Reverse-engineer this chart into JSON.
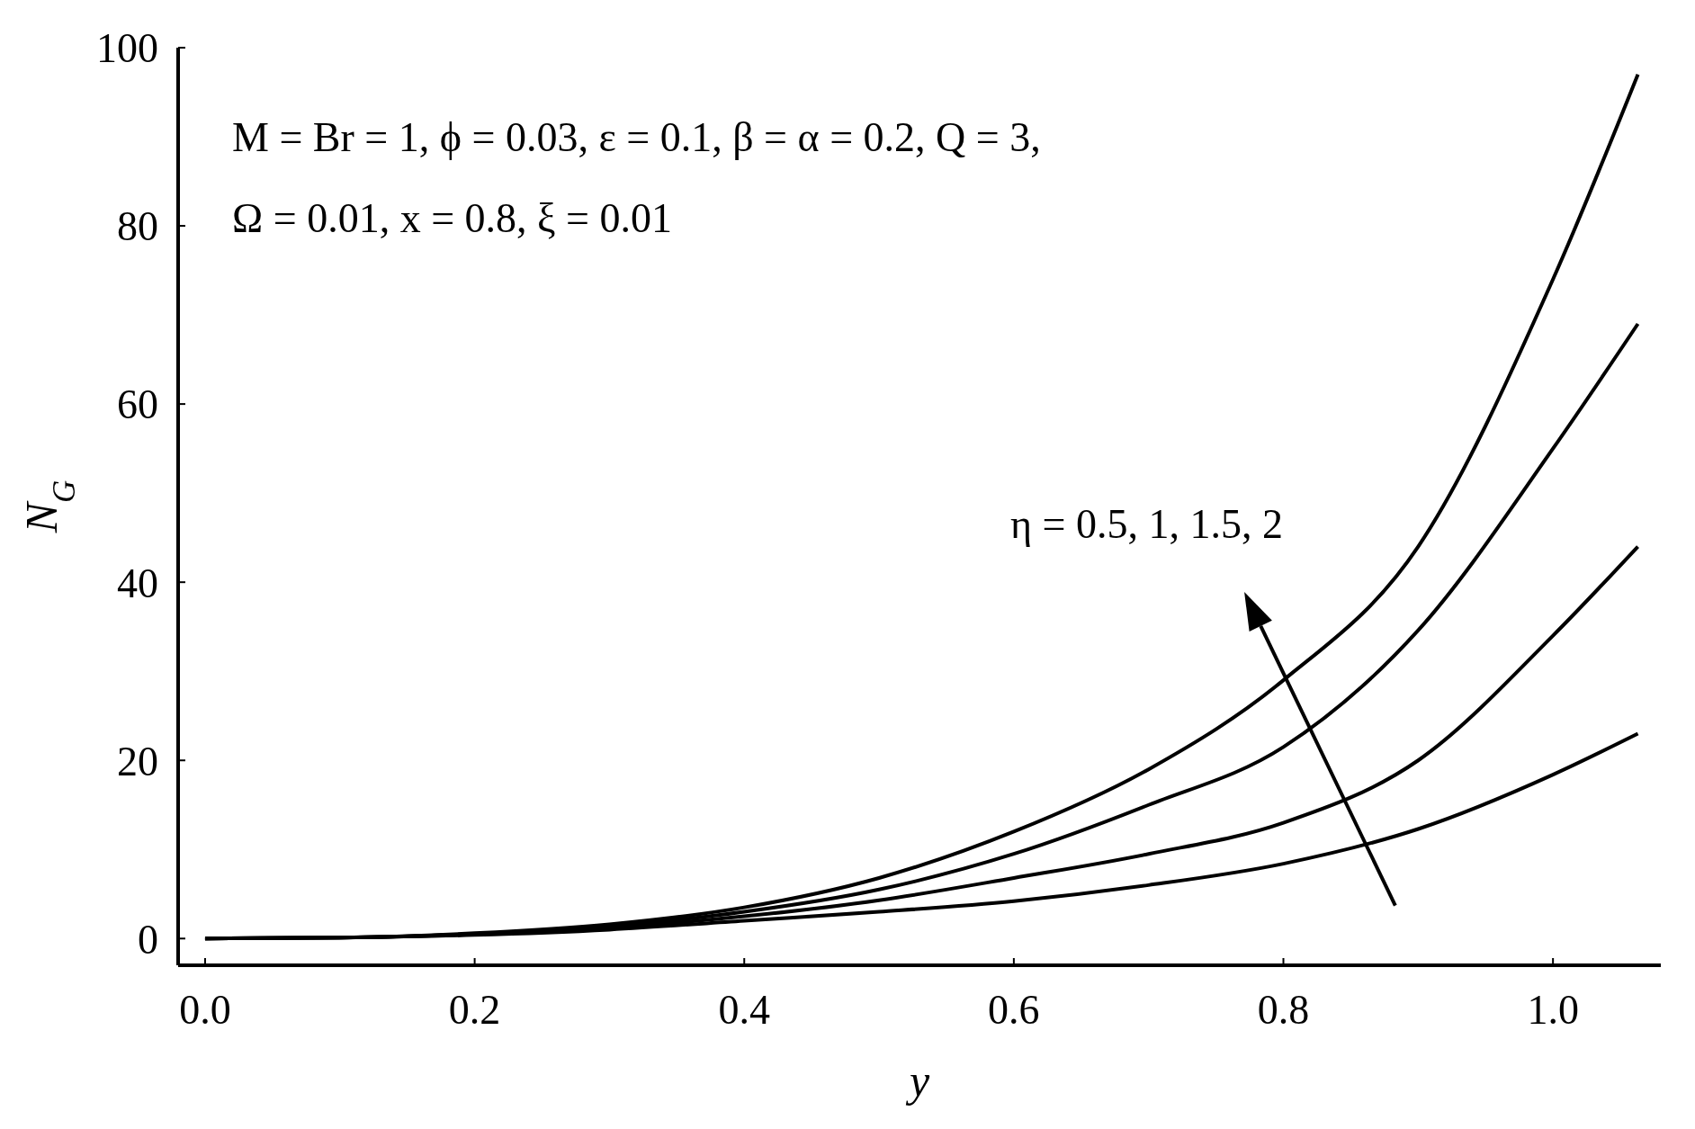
{
  "chart_data": {
    "type": "line",
    "xlabel": "y",
    "ylabel": "N$_{G}$",
    "x": [
      0,
      0.1,
      0.2,
      0.3,
      0.4,
      0.5,
      0.6,
      0.7,
      0.8,
      0.9,
      1.0,
      1.063
    ],
    "series": [
      {
        "color": "#000000",
        "values": [
          0,
          0.1,
          0.6,
          1.6,
          3.5,
          6.8,
          12,
          19,
          29,
          44,
          74,
          97
        ]
      },
      {
        "color": "#000000",
        "values": [
          0,
          0.1,
          0.5,
          1.4,
          3,
          5.5,
          9.5,
          15,
          21.5,
          34.6,
          55,
          69
        ]
      },
      {
        "color": "#000000",
        "values": [
          0,
          0.1,
          0.5,
          1.2,
          2.5,
          4.3,
          6.8,
          9.5,
          13,
          20,
          34,
          44
        ]
      },
      {
        "color": "#000000",
        "values": [
          0,
          0.1,
          0.4,
          1,
          2,
          3,
          4.2,
          6,
          8.4,
          12.3,
          18.4,
          23
        ]
      }
    ],
    "xlim": [
      -0.02,
      1.08
    ],
    "ylim": [
      -3,
      100
    ],
    "xticks": [
      {
        "value": 0,
        "label": "0.0"
      },
      0.2,
      0.4,
      0.6,
      0.8,
      {
        "value": 1,
        "label": "1.0"
      }
    ],
    "yticks": [
      0,
      20,
      40,
      60,
      80,
      100
    ],
    "grid": false,
    "legend": false,
    "marker": "none",
    "line_style": "solid",
    "annotations": [
      "M = Br  = 1, ϕ = 0.03, ε = 0.1, β = α = 0.2, Q = 3,",
      "Ω = 0.01, x = 0.8, ξ = 0.01",
      "η = 0.5, 1, 1.5, 2"
    ]
  }
}
